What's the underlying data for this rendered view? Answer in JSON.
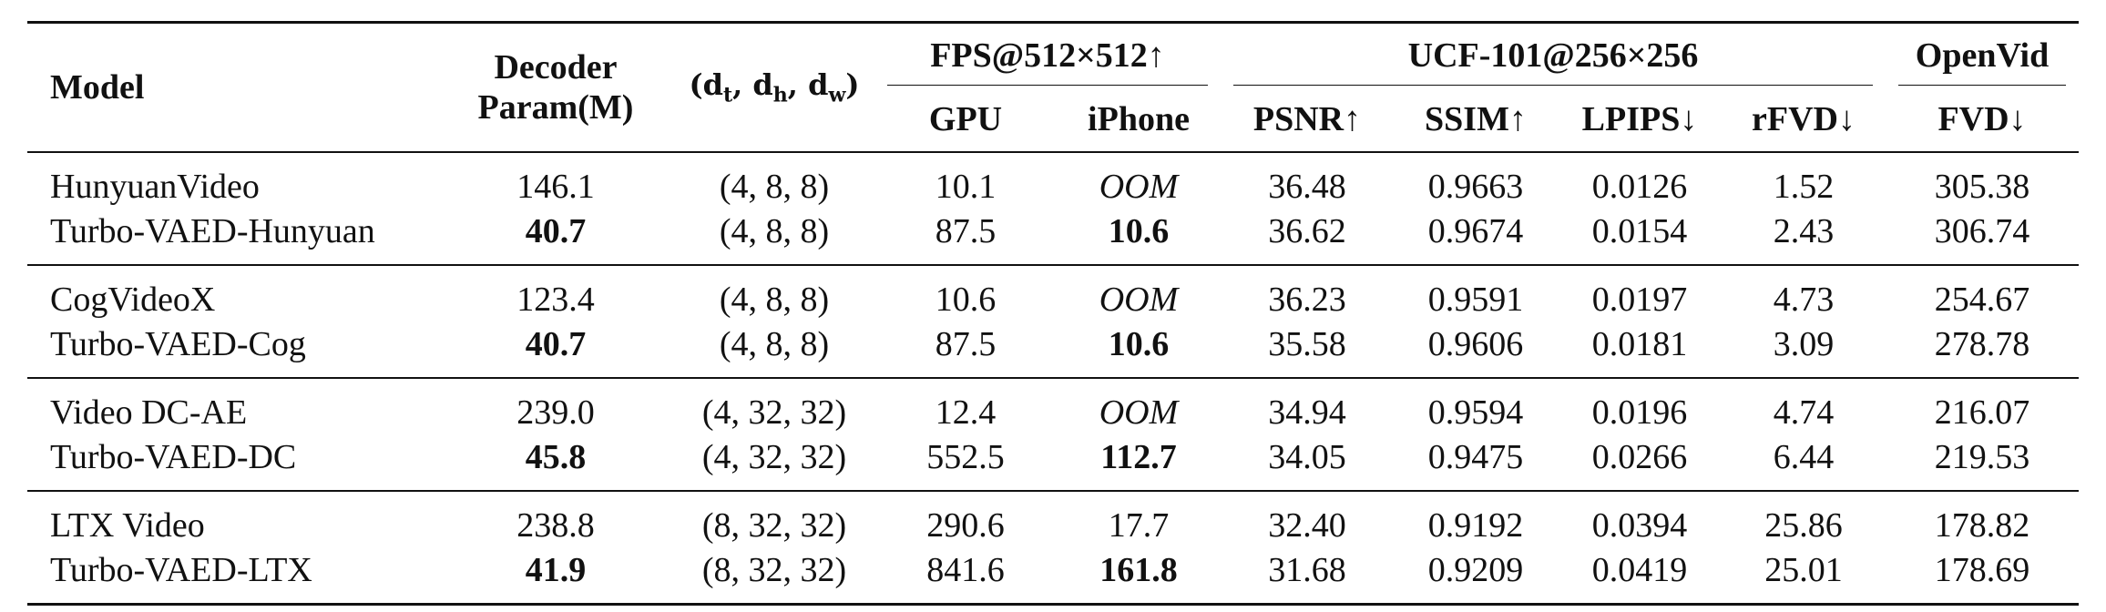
{
  "header": {
    "model": "Model",
    "decoder": [
      "Decoder",
      "Param(M)"
    ],
    "dims": [
      {
        "text": "(d",
        "sub": "t"
      },
      {
        "text": ", d",
        "sub": "h"
      },
      {
        "text": ", d",
        "sub": "w"
      },
      {
        "text": ")"
      }
    ],
    "spans": [
      {
        "title": "FPS@512×512↑",
        "columns": [
          "GPU",
          "iPhone"
        ]
      },
      {
        "title": "UCF-101@256×256",
        "columns": [
          "PSNR↑",
          "SSIM↑",
          "LPIPS↓",
          "rFVD↓"
        ]
      },
      {
        "title": "OpenVid",
        "columns": [
          "FVD↓"
        ]
      }
    ]
  },
  "groups": [
    [
      [
        "HunyuanVideo",
        "146.1",
        "(4, 8, 8)",
        "10.1",
        "OOM",
        "36.48",
        "0.9663",
        "0.0126",
        "1.52",
        "305.38"
      ],
      [
        "Turbo-VAED-Hunyuan",
        "40.7",
        "(4, 8, 8)",
        "87.5",
        "10.6",
        "36.62",
        "0.9674",
        "0.0154",
        "2.43",
        "306.74"
      ]
    ],
    [
      [
        "CogVideoX",
        "123.4",
        "(4, 8, 8)",
        "10.6",
        "OOM",
        "36.23",
        "0.9591",
        "0.0197",
        "4.73",
        "254.67"
      ],
      [
        "Turbo-VAED-Cog",
        "40.7",
        "(4, 8, 8)",
        "87.5",
        "10.6",
        "35.58",
        "0.9606",
        "0.0181",
        "3.09",
        "278.78"
      ]
    ],
    [
      [
        "Video DC-AE",
        "239.0",
        "(4, 32, 32)",
        "12.4",
        "OOM",
        "34.94",
        "0.9594",
        "0.0196",
        "4.74",
        "216.07"
      ],
      [
        "Turbo-VAED-DC",
        "45.8",
        "(4, 32, 32)",
        "552.5",
        "112.7",
        "34.05",
        "0.9475",
        "0.0266",
        "6.44",
        "219.53"
      ]
    ],
    [
      [
        "LTX Video",
        "238.8",
        "(8, 32, 32)",
        "290.6",
        "17.7",
        "32.40",
        "0.9192",
        "0.0394",
        "25.86",
        "178.82"
      ],
      [
        "Turbo-VAED-LTX",
        "41.9",
        "(8, 32, 32)",
        "841.6",
        "161.8",
        "31.68",
        "0.9209",
        "0.0419",
        "25.01",
        "178.69"
      ]
    ]
  ]
}
